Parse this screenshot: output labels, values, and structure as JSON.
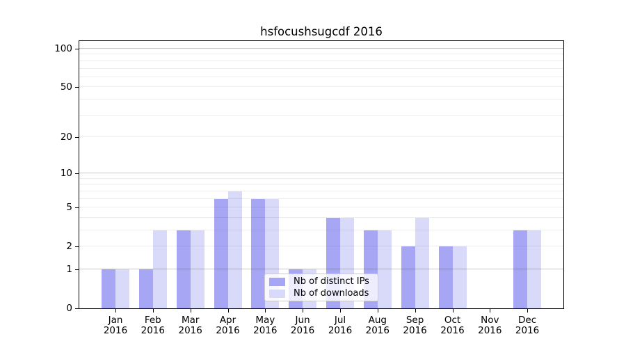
{
  "chart_data": {
    "type": "bar",
    "title": "hsfocushsugcdf 2016",
    "categories": [
      "Jan",
      "Feb",
      "Mar",
      "Apr",
      "May",
      "Jun",
      "Jul",
      "Aug",
      "Sep",
      "Oct",
      "Nov",
      "Dec"
    ],
    "category_year": "2016",
    "series": [
      {
        "name": "Nb of distinct IPs",
        "color": "#a6a6f4",
        "values": [
          1,
          1,
          3,
          6,
          6,
          1,
          4,
          3,
          2,
          2,
          0,
          3
        ]
      },
      {
        "name": "Nb of downloads",
        "color": "#d9d9f9",
        "values": [
          1,
          3,
          3,
          7,
          6,
          1,
          4,
          3,
          4,
          2,
          0,
          3
        ]
      }
    ],
    "yscale": "log10(1+x)",
    "ylim": [
      0,
      115
    ],
    "y_ticks": [
      0,
      1,
      2,
      5,
      10,
      20,
      50,
      100
    ],
    "decade_gridlines": [
      1,
      10,
      100
    ],
    "minor_gridlines": [
      2,
      3,
      4,
      5,
      6,
      7,
      8,
      9,
      20,
      30,
      40,
      50,
      60,
      70,
      80,
      90
    ],
    "grid": true,
    "legend_position": "lower center"
  }
}
